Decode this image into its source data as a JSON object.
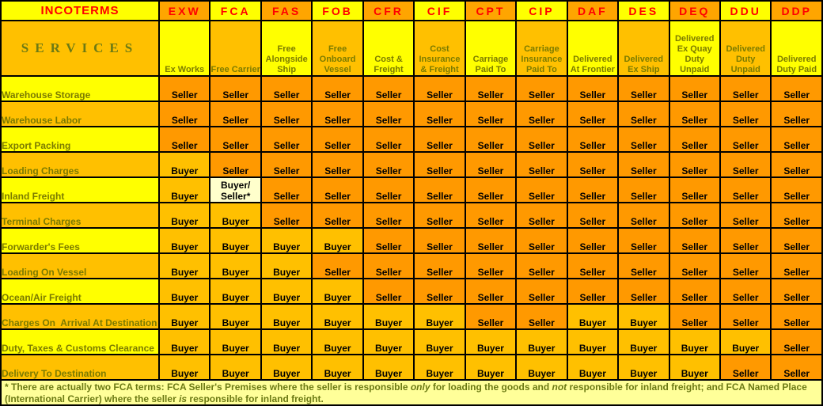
{
  "header": {
    "title": "INCOTERMS",
    "services_title": "SERVICES"
  },
  "chart_data": {
    "type": "table",
    "title": "INCOTERMS",
    "row_axis_label": "SERVICES",
    "columns": [
      {
        "code": "EXW",
        "name": "Ex Works"
      },
      {
        "code": "FCA",
        "name": "Free Carrier"
      },
      {
        "code": "FAS",
        "name": "Free Alongside Ship"
      },
      {
        "code": "FOB",
        "name": "Free Onboard Vessel"
      },
      {
        "code": "CFR",
        "name": "Cost & Freight"
      },
      {
        "code": "CIF",
        "name": "Cost Insurance & Freight"
      },
      {
        "code": "CPT",
        "name": "Carriage Paid To"
      },
      {
        "code": "CIP",
        "name": "Carriage Insurance Paid To"
      },
      {
        "code": "DAF",
        "name": "Delivered At Frontier"
      },
      {
        "code": "DES",
        "name": "Delivered Ex Ship"
      },
      {
        "code": "DEQ",
        "name": "Delivered Ex Quay Duty Unpaid"
      },
      {
        "code": "DDU",
        "name": "Delivered Duty Unpaid"
      },
      {
        "code": "DDP",
        "name": "Delivered Duty Paid"
      }
    ],
    "cell_labels": {
      "seller": "Seller",
      "buyer": "Buyer",
      "buyer_seller": "Buyer/\nSeller*"
    },
    "rows": [
      {
        "service": "Warehouse Storage",
        "cells": [
          "seller",
          "seller",
          "seller",
          "seller",
          "seller",
          "seller",
          "seller",
          "seller",
          "seller",
          "seller",
          "seller",
          "seller",
          "seller"
        ]
      },
      {
        "service": "Warehouse Labor",
        "cells": [
          "seller",
          "seller",
          "seller",
          "seller",
          "seller",
          "seller",
          "seller",
          "seller",
          "seller",
          "seller",
          "seller",
          "seller",
          "seller"
        ]
      },
      {
        "service": "Export Packing",
        "cells": [
          "seller",
          "seller",
          "seller",
          "seller",
          "seller",
          "seller",
          "seller",
          "seller",
          "seller",
          "seller",
          "seller",
          "seller",
          "seller"
        ]
      },
      {
        "service": "Loading Charges",
        "cells": [
          "buyer",
          "seller",
          "seller",
          "seller",
          "seller",
          "seller",
          "seller",
          "seller",
          "seller",
          "seller",
          "seller",
          "seller",
          "seller"
        ]
      },
      {
        "service": "Inland Freight",
        "cells": [
          "buyer",
          "buyer_seller",
          "seller",
          "seller",
          "seller",
          "seller",
          "seller",
          "seller",
          "seller",
          "seller",
          "seller",
          "seller",
          "seller"
        ]
      },
      {
        "service": "Terminal Charges",
        "cells": [
          "buyer",
          "buyer",
          "seller",
          "seller",
          "seller",
          "seller",
          "seller",
          "seller",
          "seller",
          "seller",
          "seller",
          "seller",
          "seller"
        ]
      },
      {
        "service": "Forwarder's Fees",
        "cells": [
          "buyer",
          "buyer",
          "buyer",
          "buyer",
          "seller",
          "seller",
          "seller",
          "seller",
          "seller",
          "seller",
          "seller",
          "seller",
          "seller"
        ]
      },
      {
        "service": "Loading On Vessel",
        "cells": [
          "buyer",
          "buyer",
          "buyer",
          "seller",
          "seller",
          "seller",
          "seller",
          "seller",
          "seller",
          "seller",
          "seller",
          "seller",
          "seller"
        ]
      },
      {
        "service": "Ocean/Air Freight",
        "cells": [
          "buyer",
          "buyer",
          "buyer",
          "buyer",
          "seller",
          "seller",
          "seller",
          "seller",
          "seller",
          "seller",
          "seller",
          "seller",
          "seller"
        ]
      },
      {
        "service": "Charges On  Arrival At Destination",
        "cells": [
          "buyer",
          "buyer",
          "buyer",
          "buyer",
          "buyer",
          "buyer",
          "seller",
          "seller",
          "buyer",
          "buyer",
          "seller",
          "seller",
          "seller"
        ]
      },
      {
        "service": "Duty, Taxes & Customs Clearance",
        "cells": [
          "buyer",
          "buyer",
          "buyer",
          "buyer",
          "buyer",
          "buyer",
          "buyer",
          "buyer",
          "buyer",
          "buyer",
          "buyer",
          "buyer",
          "seller"
        ]
      },
      {
        "service": "Delivery To Destination",
        "cells": [
          "buyer",
          "buyer",
          "buyer",
          "buyer",
          "buyer",
          "buyer",
          "buyer",
          "buyer",
          "buyer",
          "buyer",
          "buyer",
          "seller",
          "seller"
        ]
      }
    ]
  },
  "footnote": {
    "parts": [
      {
        "text": "* There are actually two FCA terms: FCA Seller's Premises where the seller is responsible ",
        "italic": false
      },
      {
        "text": "only",
        "italic": true
      },
      {
        "text": " for loading the goods and ",
        "italic": false
      },
      {
        "text": "not",
        "italic": true
      },
      {
        "text": " responsible for inland freight; and FCA Named Place (International Carrier) where the seller ",
        "italic": false
      },
      {
        "text": "is",
        "italic": true
      },
      {
        "text": " responsible for inland freight.",
        "italic": false
      }
    ]
  },
  "colors": {
    "yellow": "#FFFF00",
    "gold": "#FFC000",
    "orange": "#FFA500",
    "seller_orange": "#FF9900",
    "cream": "#FFFFCC",
    "footnote_bg": "#FFFF99",
    "red": "#FF0000",
    "olive": "#7B7B00",
    "olive_dark": "#6C7A14",
    "border": "#000000"
  }
}
